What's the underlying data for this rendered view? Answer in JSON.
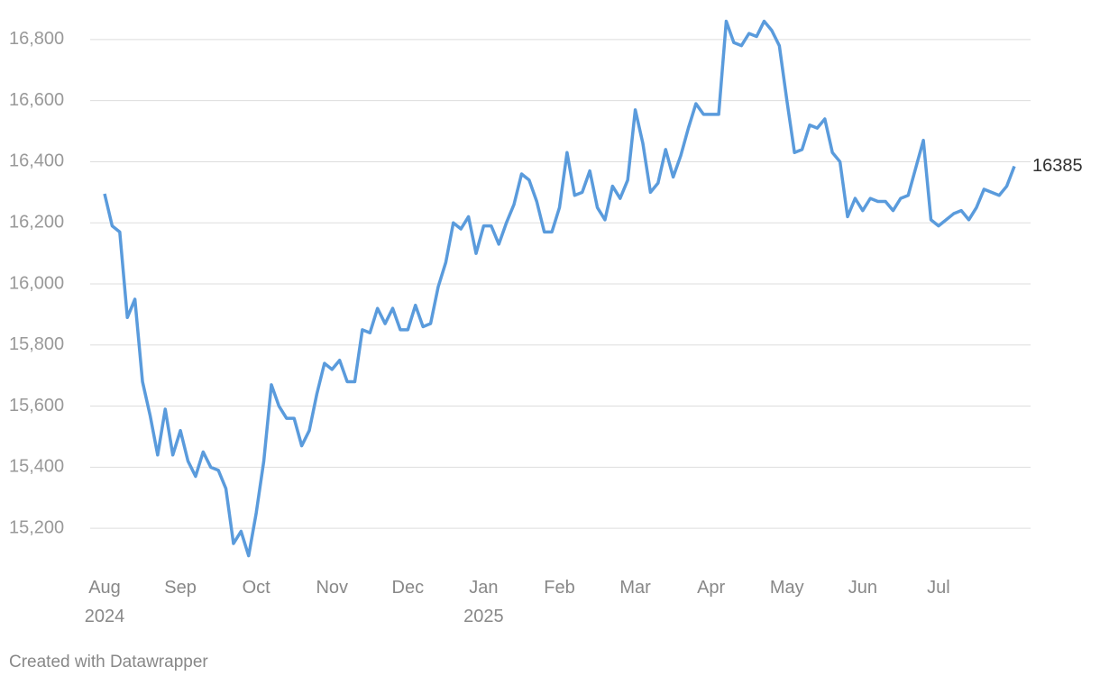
{
  "chart_data": {
    "type": "line",
    "categories": [
      "Aug\n2024",
      null,
      null,
      null,
      null,
      null,
      null,
      null,
      null,
      null,
      "Sep",
      null,
      null,
      null,
      null,
      null,
      null,
      null,
      null,
      null,
      "Oct",
      null,
      null,
      null,
      null,
      null,
      null,
      null,
      null,
      null,
      "Nov",
      null,
      null,
      null,
      null,
      null,
      null,
      null,
      null,
      null,
      "Dec",
      null,
      null,
      null,
      null,
      null,
      null,
      null,
      null,
      null,
      "Jan\n2025",
      null,
      null,
      null,
      null,
      null,
      null,
      null,
      null,
      null,
      "Feb",
      null,
      null,
      null,
      null,
      null,
      null,
      null,
      null,
      null,
      "Mar",
      null,
      null,
      null,
      null,
      null,
      null,
      null,
      null,
      null,
      "Apr",
      null,
      null,
      null,
      null,
      null,
      null,
      null,
      null,
      null,
      "May",
      null,
      null,
      null,
      null,
      null,
      null,
      null,
      null,
      null,
      "Jun",
      null,
      null,
      null,
      null,
      null,
      null,
      null,
      null,
      null,
      "Jul",
      null,
      null,
      null,
      null,
      null,
      null,
      null,
      null,
      null,
      null
    ],
    "values": [
      16295,
      16190,
      16170,
      15890,
      15950,
      15680,
      15570,
      15440,
      15590,
      15440,
      15520,
      15420,
      15370,
      15450,
      15400,
      15390,
      15330,
      15150,
      15190,
      15110,
      15250,
      15420,
      15670,
      15600,
      15560,
      15560,
      15470,
      15520,
      15640,
      15740,
      15720,
      15750,
      15680,
      15680,
      15850,
      15840,
      15920,
      15870,
      15920,
      15850,
      15850,
      15930,
      15860,
      15870,
      15990,
      16070,
      16200,
      16180,
      16220,
      16100,
      16190,
      16190,
      16130,
      16200,
      16260,
      16360,
      16340,
      16270,
      16170,
      16170,
      16250,
      16430,
      16290,
      16300,
      16370,
      16250,
      16210,
      16320,
      16280,
      16340,
      16570,
      16460,
      16300,
      16330,
      16440,
      16350,
      16420,
      16510,
      16590,
      16555,
      16555,
      16555,
      16860,
      16790,
      16780,
      16820,
      16810,
      16860,
      16830,
      16780,
      16600,
      16430,
      16440,
      16520,
      16510,
      16540,
      16430,
      16400,
      16220,
      16280,
      16240,
      16280,
      16270,
      16270,
      16240,
      16280,
      16290,
      16380,
      16470,
      16210,
      16190,
      16210,
      16230,
      16240,
      16210,
      16250,
      16310,
      16300,
      16290,
      16320,
      16385
    ],
    "color": "#5a9bdc",
    "ylim": [
      15100,
      16900
    ],
    "yticks": [
      {
        "value": 15200,
        "label": "15,200"
      },
      {
        "value": 15400,
        "label": "15,400"
      },
      {
        "value": 15600,
        "label": "15,600"
      },
      {
        "value": 15800,
        "label": "15,800"
      },
      {
        "value": 16000,
        "label": "16,000"
      },
      {
        "value": 16200,
        "label": "16,200"
      },
      {
        "value": 16400,
        "label": "16,400"
      },
      {
        "value": 16600,
        "label": "16,600"
      },
      {
        "value": 16800,
        "label": "16,800"
      }
    ],
    "grid": true,
    "credit": "Created with Datawrapper"
  }
}
